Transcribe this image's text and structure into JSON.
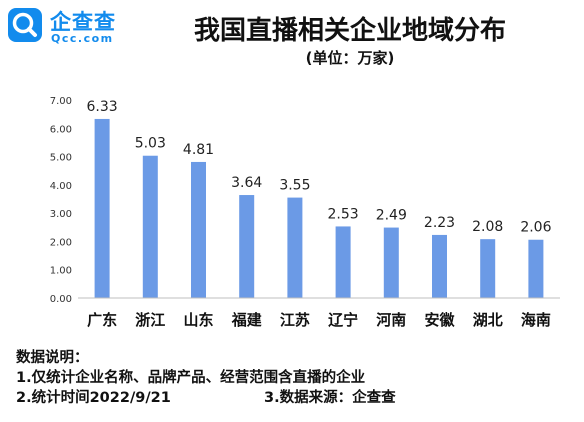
{
  "brand": {
    "name": "企查查",
    "domain": "Qcc.com",
    "color": "#128bed"
  },
  "chart_data": {
    "type": "bar",
    "title": "我国直播相关企业地域分布",
    "subtitle": "(单位：万家)",
    "categories": [
      "广东",
      "浙江",
      "山东",
      "福建",
      "江苏",
      "辽宁",
      "河南",
      "安徽",
      "湖北",
      "海南"
    ],
    "values": [
      6.33,
      5.03,
      4.81,
      3.64,
      3.55,
      2.53,
      2.49,
      2.23,
      2.08,
      2.06
    ],
    "value_labels": [
      "6.33",
      "5.03",
      "4.81",
      "3.64",
      "3.55",
      "2.53",
      "2.49",
      "2.23",
      "2.08",
      "2.06"
    ],
    "ylim": [
      0,
      7
    ],
    "yticks": [
      "0.00",
      "1.00",
      "2.00",
      "3.00",
      "4.00",
      "5.00",
      "6.00",
      "7.00"
    ],
    "bar_color": "#6b9ae6",
    "grid": false,
    "xlabel": "",
    "ylabel": ""
  },
  "notes": {
    "heading": "数据说明：",
    "line1": "1.仅统计企业名称、品牌产品、经营范围含直播的企业",
    "line2_left": "2.统计时间2022/9/21",
    "line2_right": "3.数据来源：企查查"
  }
}
